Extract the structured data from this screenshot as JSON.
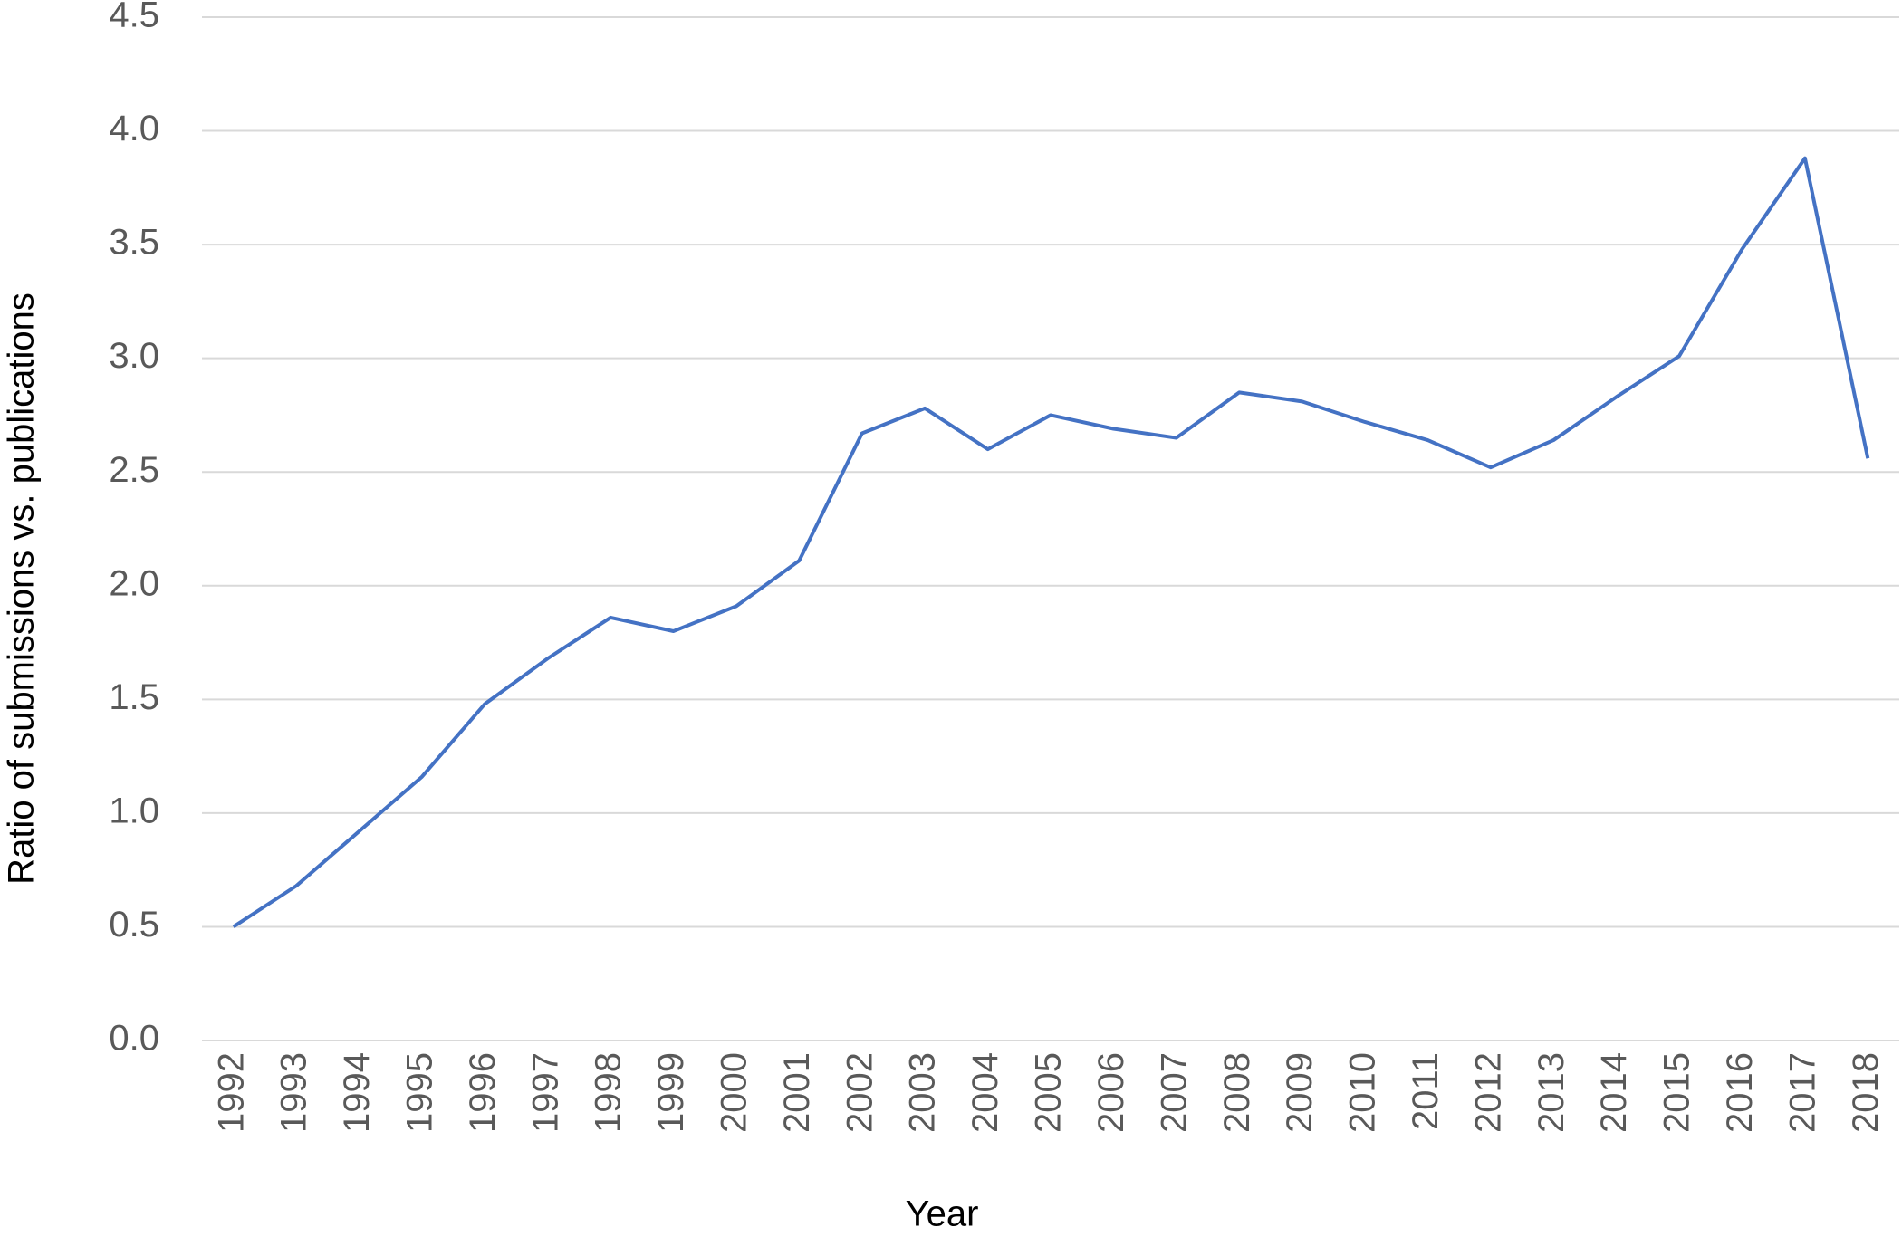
{
  "chart_data": {
    "type": "line",
    "x_label": "Year",
    "y_label": "Ratio of submissions vs. publications",
    "categories": [
      "1992",
      "1993",
      "1994",
      "1995",
      "1996",
      "1997",
      "1998",
      "1999",
      "2000",
      "2001",
      "2002",
      "2003",
      "2004",
      "2005",
      "2006",
      "2007",
      "2008",
      "2009",
      "2010",
      "2011",
      "2012",
      "2013",
      "2014",
      "2015",
      "2016",
      "2017",
      "2018"
    ],
    "values": [
      0.5,
      0.68,
      0.92,
      1.16,
      1.48,
      1.68,
      1.86,
      1.8,
      1.91,
      2.11,
      2.67,
      2.78,
      2.6,
      2.75,
      2.69,
      2.65,
      2.85,
      2.81,
      2.72,
      2.64,
      2.52,
      2.64,
      2.83,
      3.01,
      3.48,
      3.88,
      2.56
    ],
    "color": "#4472c4",
    "ylim": [
      0,
      4.5
    ],
    "yticks": [
      {
        "value": 0,
        "label": "0.0"
      },
      0.5,
      {
        "value": 1,
        "label": "1.0"
      },
      1.5,
      {
        "value": 2,
        "label": "2.0"
      },
      2.5,
      {
        "value": 3,
        "label": "3.0"
      },
      3.5,
      {
        "value": 4,
        "label": "4.0"
      },
      4.5
    ],
    "grid": true
  }
}
